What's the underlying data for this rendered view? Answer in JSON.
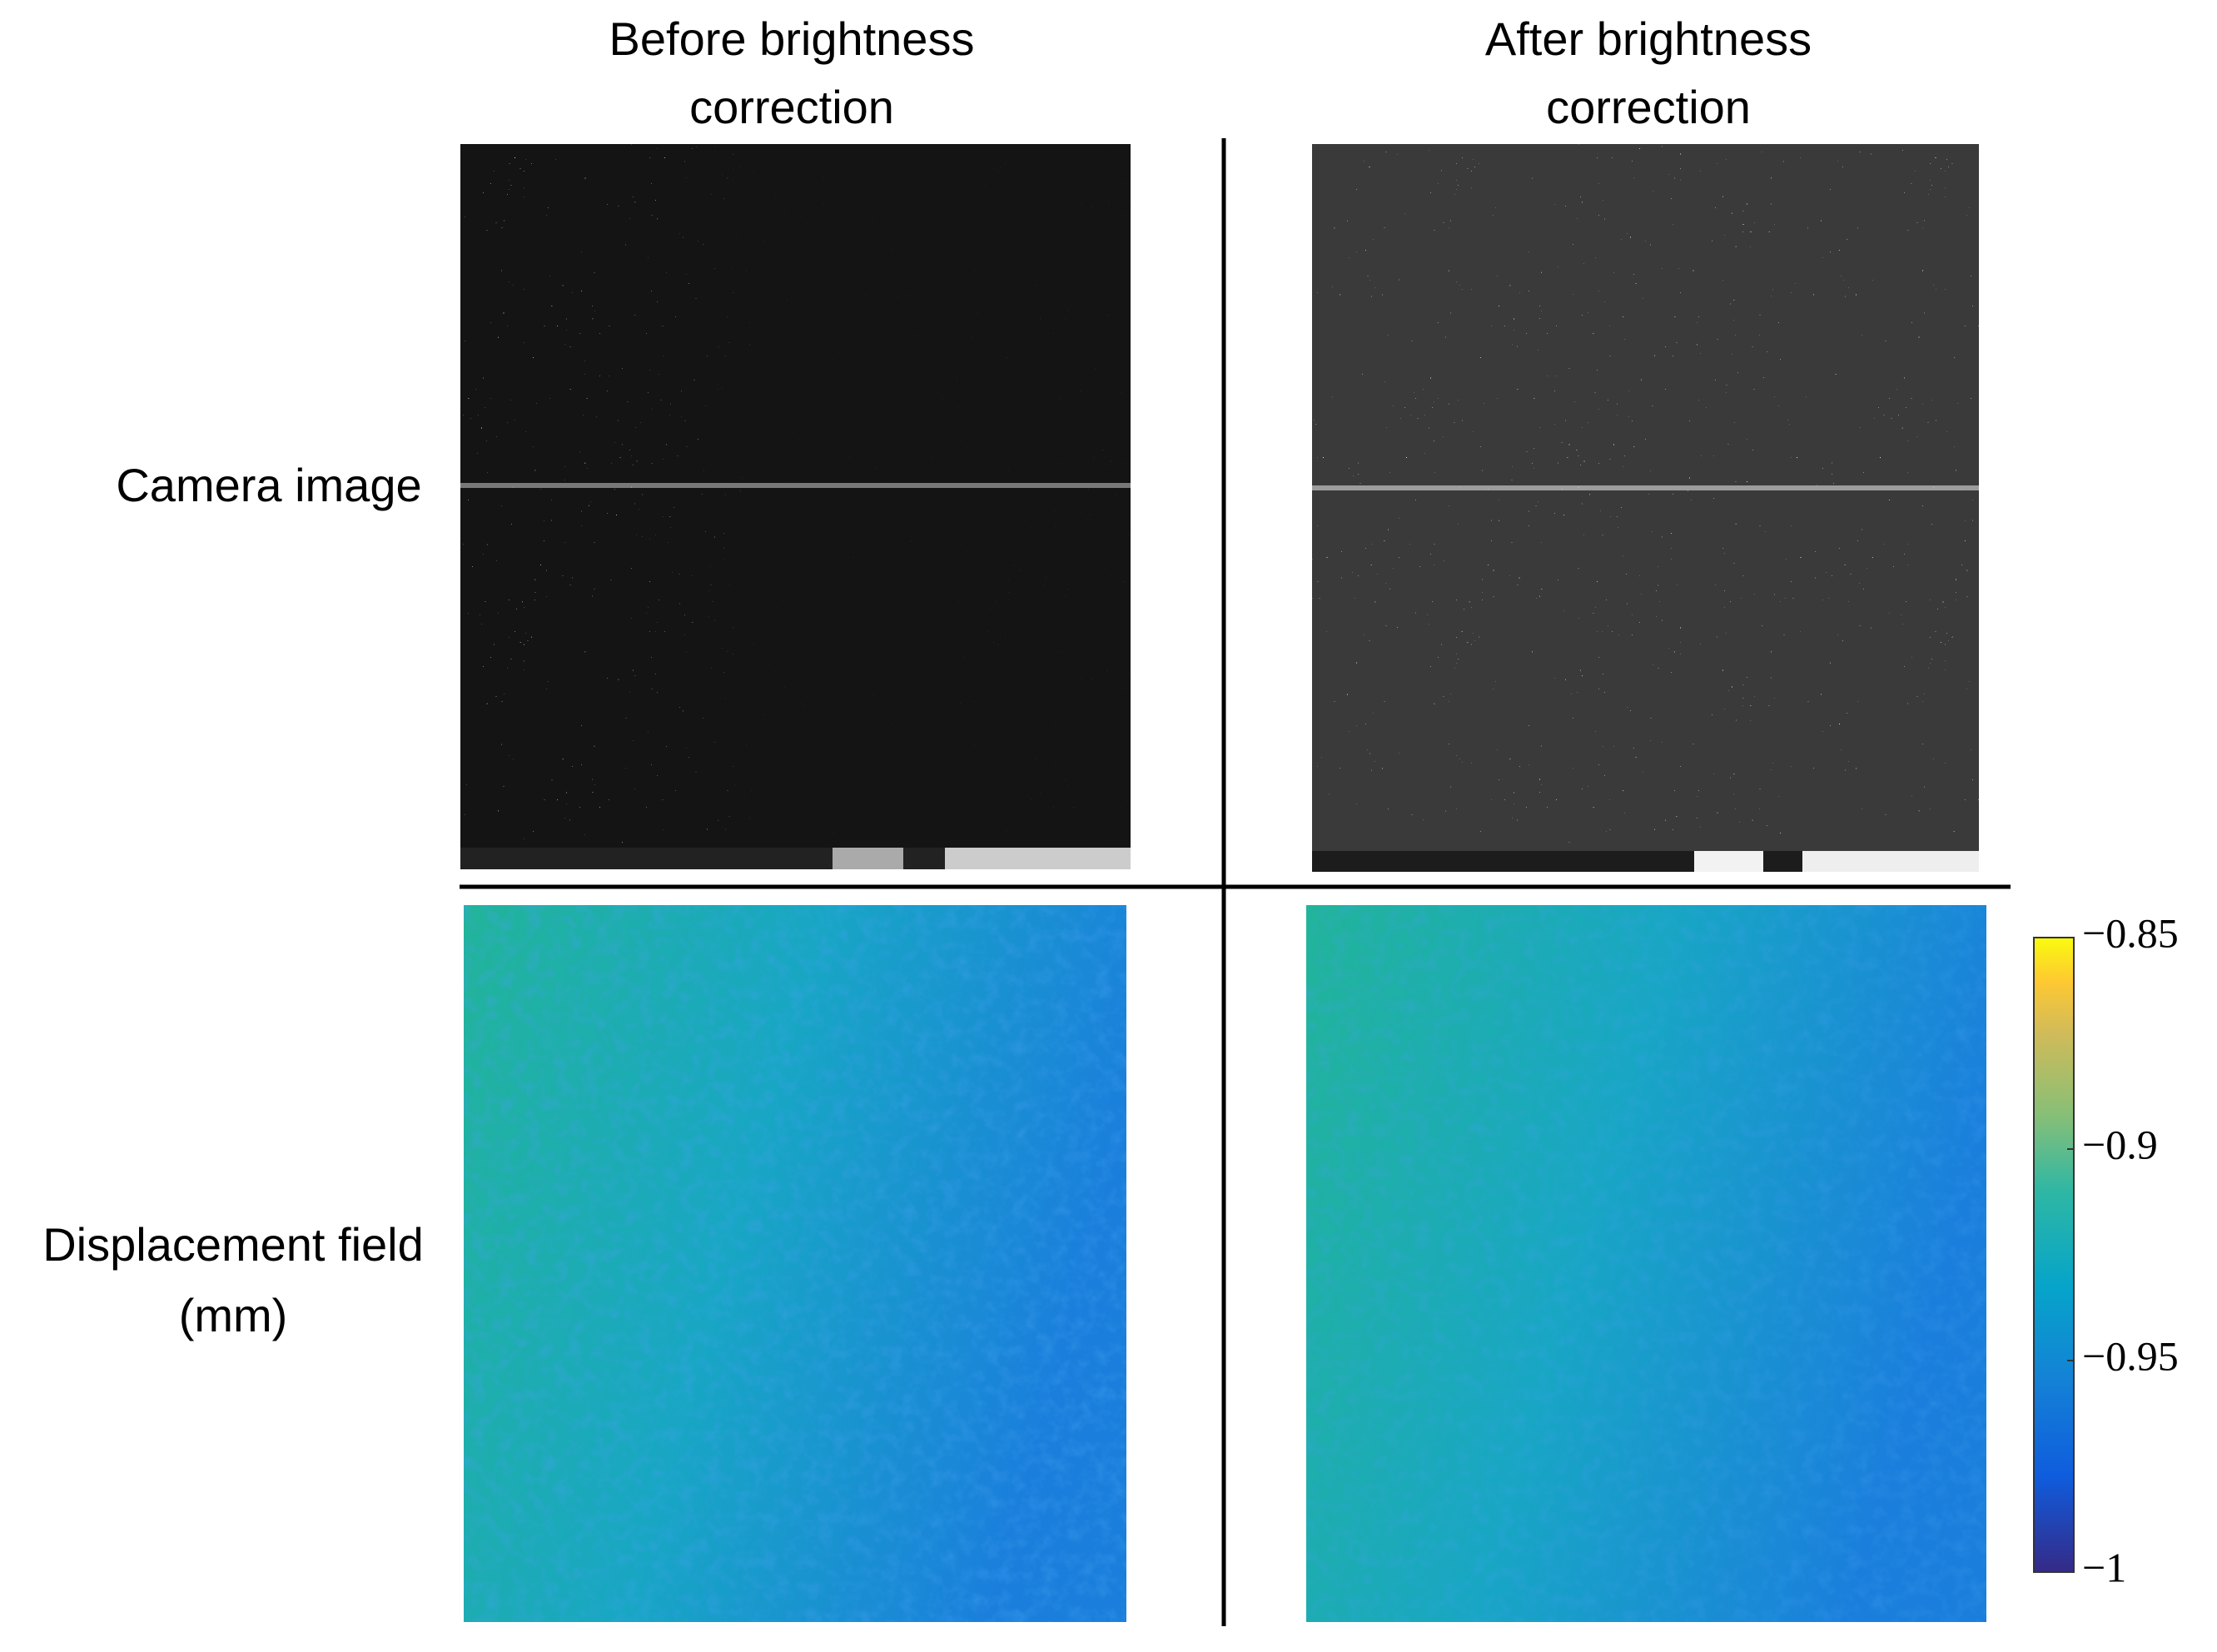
{
  "columns": [
    {
      "title_lines": [
        "Before brightness",
        "correction"
      ]
    },
    {
      "title_lines": [
        "After brightness",
        "correction"
      ]
    }
  ],
  "rows": [
    {
      "label_lines": [
        "Camera image"
      ]
    },
    {
      "label_lines": [
        "Displacement field",
        "(mm)"
      ]
    }
  ],
  "colorbar": {
    "lim": [
      -1,
      -0.85
    ],
    "ticks": [
      {
        "value": -0.85,
        "label": "−0.85"
      },
      {
        "value": -0.9,
        "label": "−0.9"
      },
      {
        "value": -0.95,
        "label": "−0.95"
      },
      {
        "value": -1,
        "label": "−1"
      }
    ]
  }
}
